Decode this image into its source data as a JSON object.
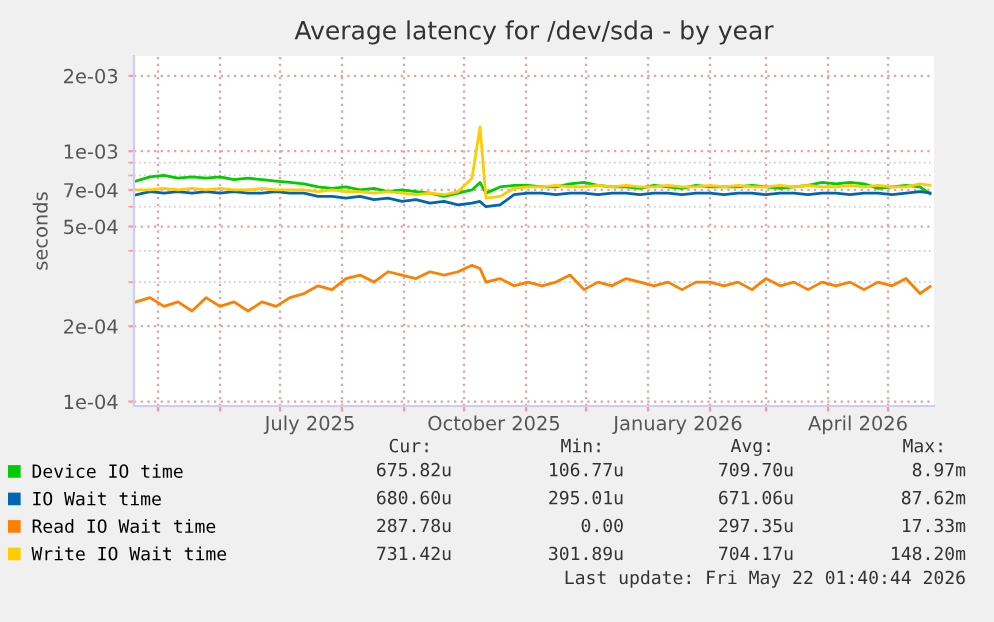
{
  "chart_data": {
    "type": "line",
    "title": "Average latency for /dev/sda - by year",
    "ylabel": "seconds",
    "x": [
      "2025-04-20",
      "2025-04-27",
      "2025-05-04",
      "2025-05-11",
      "2025-05-18",
      "2025-05-25",
      "2025-06-01",
      "2025-06-08",
      "2025-06-15",
      "2025-06-22",
      "2025-06-29",
      "2025-07-06",
      "2025-07-13",
      "2025-07-20",
      "2025-07-27",
      "2025-08-03",
      "2025-08-10",
      "2025-08-17",
      "2025-08-24",
      "2025-08-31",
      "2025-09-07",
      "2025-09-14",
      "2025-09-21",
      "2025-09-28",
      "2025-10-05",
      "2025-10-09",
      "2025-10-12",
      "2025-10-19",
      "2025-10-26",
      "2025-11-02",
      "2025-11-09",
      "2025-11-16",
      "2025-11-23",
      "2025-11-30",
      "2025-12-07",
      "2025-12-14",
      "2025-12-21",
      "2025-12-28",
      "2026-01-04",
      "2026-01-11",
      "2026-01-18",
      "2026-01-25",
      "2026-02-01",
      "2026-02-08",
      "2026-02-15",
      "2026-02-22",
      "2026-03-01",
      "2026-03-08",
      "2026-03-15",
      "2026-03-22",
      "2026-03-29",
      "2026-04-05",
      "2026-04-12",
      "2026-04-19",
      "2026-04-26",
      "2026-05-03",
      "2026-05-10",
      "2026-05-17",
      "2026-05-22"
    ],
    "series": [
      {
        "name": "Device IO time",
        "color": "#00cc00",
        "values": [
          0.00076,
          0.00079,
          0.0008,
          0.00078,
          0.00079,
          0.00078,
          0.00079,
          0.00077,
          0.00078,
          0.00077,
          0.00076,
          0.00075,
          0.00074,
          0.00072,
          0.00071,
          0.00072,
          0.0007,
          0.00071,
          0.00069,
          0.0007,
          0.00069,
          0.00068,
          0.00066,
          0.00068,
          0.0007,
          0.00075,
          0.00068,
          0.00072,
          0.00073,
          0.00073,
          0.00072,
          0.00072,
          0.00074,
          0.00075,
          0.00073,
          0.00072,
          0.00072,
          0.00071,
          0.00073,
          0.00072,
          0.00071,
          0.00073,
          0.00072,
          0.00072,
          0.00072,
          0.00073,
          0.00072,
          0.00071,
          0.00072,
          0.00073,
          0.00075,
          0.00074,
          0.00075,
          0.00074,
          0.00071,
          0.00072,
          0.00073,
          0.00072,
          0.000676
        ]
      },
      {
        "name": "IO Wait time",
        "color": "#0066b3",
        "values": [
          0.00067,
          0.00069,
          0.00068,
          0.00069,
          0.00068,
          0.00069,
          0.00068,
          0.00069,
          0.00068,
          0.00068,
          0.00069,
          0.00068,
          0.00068,
          0.00066,
          0.00066,
          0.00065,
          0.00066,
          0.00064,
          0.00065,
          0.00063,
          0.00064,
          0.00062,
          0.00063,
          0.00061,
          0.00062,
          0.00063,
          0.0006,
          0.00061,
          0.00067,
          0.00068,
          0.00068,
          0.00067,
          0.00068,
          0.00068,
          0.00067,
          0.00068,
          0.00068,
          0.00067,
          0.00068,
          0.00068,
          0.00067,
          0.00068,
          0.00068,
          0.00067,
          0.00068,
          0.00068,
          0.00067,
          0.00068,
          0.00068,
          0.00067,
          0.00068,
          0.00068,
          0.00067,
          0.00068,
          0.00068,
          0.00067,
          0.00068,
          0.00069,
          0.000681
        ]
      },
      {
        "name": "Read IO Wait time",
        "color": "#ff8000",
        "values": [
          0.00025,
          0.00026,
          0.00024,
          0.00025,
          0.00023,
          0.00026,
          0.00024,
          0.00025,
          0.00023,
          0.00025,
          0.00024,
          0.00026,
          0.00027,
          0.00029,
          0.00028,
          0.00031,
          0.00032,
          0.0003,
          0.00033,
          0.00032,
          0.00031,
          0.00033,
          0.00032,
          0.00033,
          0.00035,
          0.00034,
          0.0003,
          0.00031,
          0.00029,
          0.0003,
          0.00029,
          0.0003,
          0.00032,
          0.00028,
          0.0003,
          0.00029,
          0.00031,
          0.0003,
          0.00029,
          0.0003,
          0.00028,
          0.0003,
          0.0003,
          0.00029,
          0.0003,
          0.00028,
          0.00031,
          0.00029,
          0.0003,
          0.00028,
          0.0003,
          0.00029,
          0.0003,
          0.00028,
          0.0003,
          0.00029,
          0.00031,
          0.00027,
          0.000288
        ]
      },
      {
        "name": "Write IO Wait time",
        "color": "#ffcc00",
        "values": [
          0.0007,
          0.0007,
          0.00071,
          0.0007,
          0.00071,
          0.0007,
          0.00071,
          0.0007,
          0.0007,
          0.00071,
          0.0007,
          0.0007,
          0.0007,
          0.00069,
          0.0007,
          0.00069,
          0.00069,
          0.00068,
          0.00069,
          0.00068,
          0.00067,
          0.00068,
          0.00067,
          0.00069,
          0.00078,
          0.00125,
          0.00065,
          0.00066,
          0.00071,
          0.00072,
          0.00072,
          0.00073,
          0.00072,
          0.00072,
          0.00073,
          0.00072,
          0.00073,
          0.00072,
          0.00072,
          0.00073,
          0.00072,
          0.00072,
          0.00073,
          0.00072,
          0.00073,
          0.00072,
          0.00072,
          0.00073,
          0.00072,
          0.00073,
          0.00072,
          0.00072,
          0.00073,
          0.00072,
          0.00073,
          0.00072,
          0.00072,
          0.00074,
          0.000731
        ]
      }
    ],
    "log": "y",
    "ylim": [
      9.6e-05,
      0.0024
    ],
    "yticks": [
      {
        "value": 0.0001,
        "label": "1e-04"
      },
      {
        "value": 0.0002,
        "label": "2e-04"
      },
      {
        "value": 0.0005,
        "label": "5e-04"
      },
      {
        "value": 0.0007,
        "label": "7e-04"
      },
      {
        "value": 0.001,
        "label": "1e-03"
      },
      {
        "value": 0.002,
        "label": "2e-03"
      }
    ],
    "xlim": [
      "2025-04-19",
      "2026-05-24"
    ],
    "xticks": [
      {
        "value": "2025-05-01",
        "label": null
      },
      {
        "value": "2025-06-01",
        "label": null
      },
      {
        "value": "2025-07-01",
        "label": null
      },
      {
        "value": "2025-07-16",
        "label": "July 2025"
      },
      {
        "value": "2025-08-01",
        "label": null
      },
      {
        "value": "2025-09-01",
        "label": null
      },
      {
        "value": "2025-10-01",
        "label": null
      },
      {
        "value": "2025-10-16",
        "label": "October 2025"
      },
      {
        "value": "2025-11-01",
        "label": null
      },
      {
        "value": "2025-12-01",
        "label": null
      },
      {
        "value": "2026-01-01",
        "label": null
      },
      {
        "value": "2026-01-16",
        "label": "January 2026"
      },
      {
        "value": "2026-02-01",
        "label": null
      },
      {
        "value": "2026-03-01",
        "label": null
      },
      {
        "value": "2026-04-01",
        "label": null
      },
      {
        "value": "2026-04-16",
        "label": "April 2026"
      },
      {
        "value": "2026-05-01",
        "label": null
      }
    ],
    "grid": true,
    "legend": "bottom left",
    "annotations": [
      "Cur:",
      "Min:",
      "Avg:",
      "Max:",
      "675.82u",
      "106.77u",
      "709.70u",
      "8.97m",
      "680.60u",
      "295.01u",
      "671.06u",
      "87.62m",
      "287.78u",
      "0.00",
      "297.35u",
      "17.33m",
      "731.42u",
      "301.89u",
      "704.17u",
      "148.20m",
      "Last update: Fri May 22 01:40:44 2026"
    ]
  }
}
